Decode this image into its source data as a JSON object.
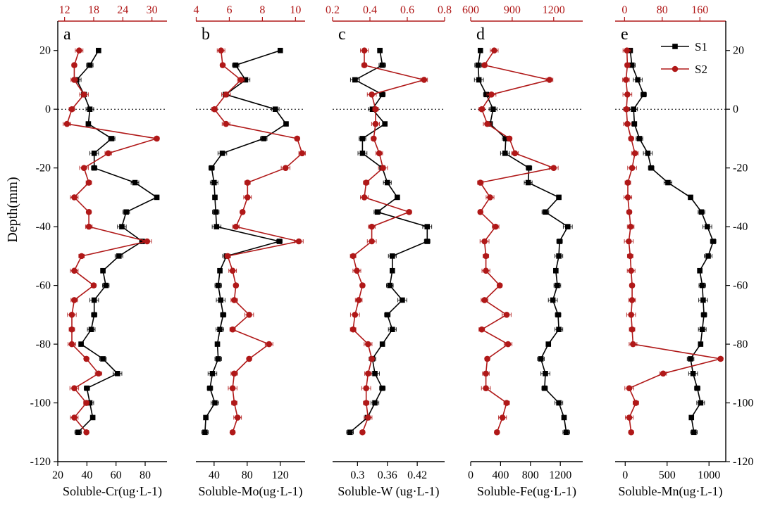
{
  "figure": {
    "ylabel": "Depth(mm)",
    "depth_ticks": [
      "20",
      "0",
      "-20",
      "-40",
      "-60",
      "-80",
      "-100",
      "-120"
    ],
    "legend": [
      "S1",
      "S2"
    ],
    "colors": {
      "s1": "#000000",
      "s2": "#b01818",
      "baseline": "#000000"
    }
  },
  "chart_data": [
    {
      "type": "line",
      "panel": "a",
      "xlabel_black": "Soluble-Cr(ug·L-1)",
      "black_ticks": [
        20,
        40,
        60,
        80
      ],
      "red_ticks": [
        12,
        18,
        24,
        30
      ],
      "black_xlim": [
        20,
        95
      ],
      "red_xlim": [
        10.6,
        33.1
      ],
      "ylim": [
        -120,
        30
      ],
      "depth": [
        20,
        15,
        10,
        5,
        0,
        -5,
        -10,
        -15,
        -20,
        -25,
        -30,
        -35,
        -40,
        -45,
        -50,
        -55,
        -60,
        -65,
        -70,
        -75,
        -80,
        -85,
        -90,
        -95,
        -100,
        -105,
        -110
      ],
      "series": [
        {
          "name": "S1",
          "axis": "bottom",
          "values": [
            48,
            42,
            33,
            38,
            42,
            41,
            57,
            45,
            45,
            73,
            88,
            67,
            64,
            78,
            62,
            51,
            53,
            45,
            45,
            43,
            36,
            51,
            61,
            40,
            42,
            44,
            34
          ]
        },
        {
          "name": "S2",
          "axis": "top",
          "values": [
            15,
            14,
            14,
            16,
            13.5,
            12.5,
            31,
            21,
            16,
            17,
            14,
            17,
            17,
            29,
            15.5,
            14,
            18,
            14,
            13.5,
            13.5,
            13.5,
            16.5,
            19,
            14,
            16.5,
            14,
            16.5
          ]
        }
      ]
    },
    {
      "type": "line",
      "panel": "b",
      "xlabel_black": "Soluble-Mo(ug·L-1)",
      "black_ticks": [
        40,
        80,
        120
      ],
      "red_ticks": [
        4,
        6,
        8,
        10
      ],
      "black_xlim": [
        18,
        150
      ],
      "red_xlim": [
        3.98,
        10.58
      ],
      "ylim": [
        -120,
        30
      ],
      "depth": [
        20,
        15,
        10,
        5,
        0,
        -5,
        -10,
        -15,
        -20,
        -25,
        -30,
        -35,
        -40,
        -45,
        -50,
        -55,
        -60,
        -65,
        -70,
        -75,
        -80,
        -85,
        -90,
        -95,
        -100,
        -105,
        -110
      ],
      "series": [
        {
          "name": "S1",
          "axis": "bottom",
          "values": [
            120,
            66,
            78,
            54,
            114,
            127,
            100,
            50,
            37,
            40,
            41,
            42,
            43,
            119,
            55,
            47,
            45,
            48,
            51,
            47,
            44,
            45,
            38,
            35,
            41,
            30,
            29
          ]
        },
        {
          "name": "S2",
          "axis": "top",
          "values": [
            5.5,
            5.6,
            6.7,
            5.8,
            5.1,
            5.8,
            10.1,
            10.4,
            9.4,
            7.1,
            7.1,
            6.8,
            6.4,
            10.2,
            5.9,
            6.2,
            6.4,
            6.3,
            7.2,
            6.2,
            8.4,
            7.2,
            6.3,
            6.2,
            6.3,
            6.5,
            6.2
          ]
        }
      ]
    },
    {
      "type": "line",
      "panel": "c",
      "xlabel_black": "Soluble-W (ug·L-1)",
      "black_ticks": [
        0.3,
        0.36,
        0.42
      ],
      "red_ticks": [
        0.2,
        0.4,
        0.6,
        0.8
      ],
      "black_xlim": [
        0.25,
        0.475
      ],
      "red_xlim": [
        0.2,
        0.8
      ],
      "ylim": [
        -120,
        30
      ],
      "depth": [
        20,
        15,
        10,
        5,
        0,
        -5,
        -10,
        -15,
        -20,
        -25,
        -30,
        -35,
        -40,
        -45,
        -50,
        -55,
        -60,
        -65,
        -70,
        -75,
        -80,
        -85,
        -90,
        -95,
        -100,
        -105,
        -110
      ],
      "series": [
        {
          "name": "S1",
          "axis": "bottom",
          "values": [
            0.345,
            0.35,
            0.295,
            0.35,
            0.33,
            0.355,
            0.31,
            0.31,
            0.35,
            0.36,
            0.38,
            0.34,
            0.44,
            0.44,
            0.37,
            0.37,
            0.365,
            0.39,
            0.36,
            0.37,
            0.35,
            0.33,
            0.335,
            0.35,
            0.335,
            0.32,
            0.285
          ]
        },
        {
          "name": "S2",
          "axis": "top",
          "values": [
            0.37,
            0.37,
            0.69,
            0.41,
            0.43,
            0.43,
            0.42,
            0.45,
            0.47,
            0.38,
            0.37,
            0.61,
            0.41,
            0.41,
            0.31,
            0.33,
            0.36,
            0.34,
            0.32,
            0.31,
            0.39,
            0.41,
            0.39,
            0.38,
            0.38,
            0.39,
            0.36
          ]
        }
      ]
    },
    {
      "type": "line",
      "panel": "d",
      "xlabel_black": "Soluble-Fe(ug·L-1)",
      "black_ticks": [
        0,
        400,
        800,
        1200
      ],
      "red_ticks": [
        600,
        900,
        1200
      ],
      "black_xlim": [
        0,
        1500
      ],
      "red_xlim": [
        600,
        1410
      ],
      "ylim": [
        -120,
        30
      ],
      "depth": [
        20,
        15,
        10,
        5,
        0,
        -5,
        -10,
        -15,
        -20,
        -25,
        -30,
        -35,
        -40,
        -45,
        -50,
        -55,
        -60,
        -65,
        -70,
        -75,
        -80,
        -85,
        -90,
        -95,
        -100,
        -105,
        -110
      ],
      "series": [
        {
          "name": "S1",
          "axis": "bottom",
          "values": [
            130,
            100,
            110,
            210,
            300,
            260,
            470,
            460,
            780,
            770,
            1180,
            1000,
            1300,
            1190,
            1180,
            1140,
            1160,
            1100,
            1170,
            1180,
            1040,
            940,
            1000,
            990,
            1180,
            1250,
            1280
          ]
        },
        {
          "name": "S2",
          "axis": "top",
          "values": [
            770,
            700,
            1170,
            750,
            680,
            720,
            880,
            920,
            1200,
            670,
            740,
            670,
            780,
            700,
            710,
            710,
            810,
            700,
            860,
            680,
            870,
            720,
            710,
            710,
            860,
            830,
            790
          ]
        }
      ]
    },
    {
      "type": "line",
      "panel": "e",
      "xlabel_black": "Soluble-Mn(ug·L-1)",
      "black_ticks": [
        0,
        500,
        1000
      ],
      "red_ticks": [
        0,
        80,
        160
      ],
      "black_xlim": [
        -120,
        1200
      ],
      "red_xlim": [
        -20,
        215
      ],
      "ylim": [
        -120,
        30
      ],
      "depth": [
        20,
        15,
        10,
        5,
        0,
        -5,
        -10,
        -15,
        -20,
        -25,
        -30,
        -35,
        -40,
        -45,
        -50,
        -55,
        -60,
        -65,
        -70,
        -75,
        -80,
        -85,
        -90,
        -95,
        -100,
        -105,
        -110
      ],
      "series": [
        {
          "name": "S1",
          "axis": "bottom",
          "values": [
            60,
            80,
            150,
            220,
            100,
            110,
            170,
            270,
            310,
            510,
            780,
            910,
            980,
            1050,
            990,
            890,
            920,
            930,
            940,
            920,
            900,
            780,
            810,
            860,
            900,
            790,
            820
          ]
        },
        {
          "name": "S2",
          "axis": "top",
          "values": [
            5,
            6,
            3,
            6,
            4,
            6,
            14,
            22,
            16,
            7,
            7,
            10,
            13,
            9,
            12,
            14,
            16,
            16,
            14,
            16,
            18,
            204,
            82,
            10,
            24,
            10,
            14
          ]
        }
      ]
    }
  ]
}
